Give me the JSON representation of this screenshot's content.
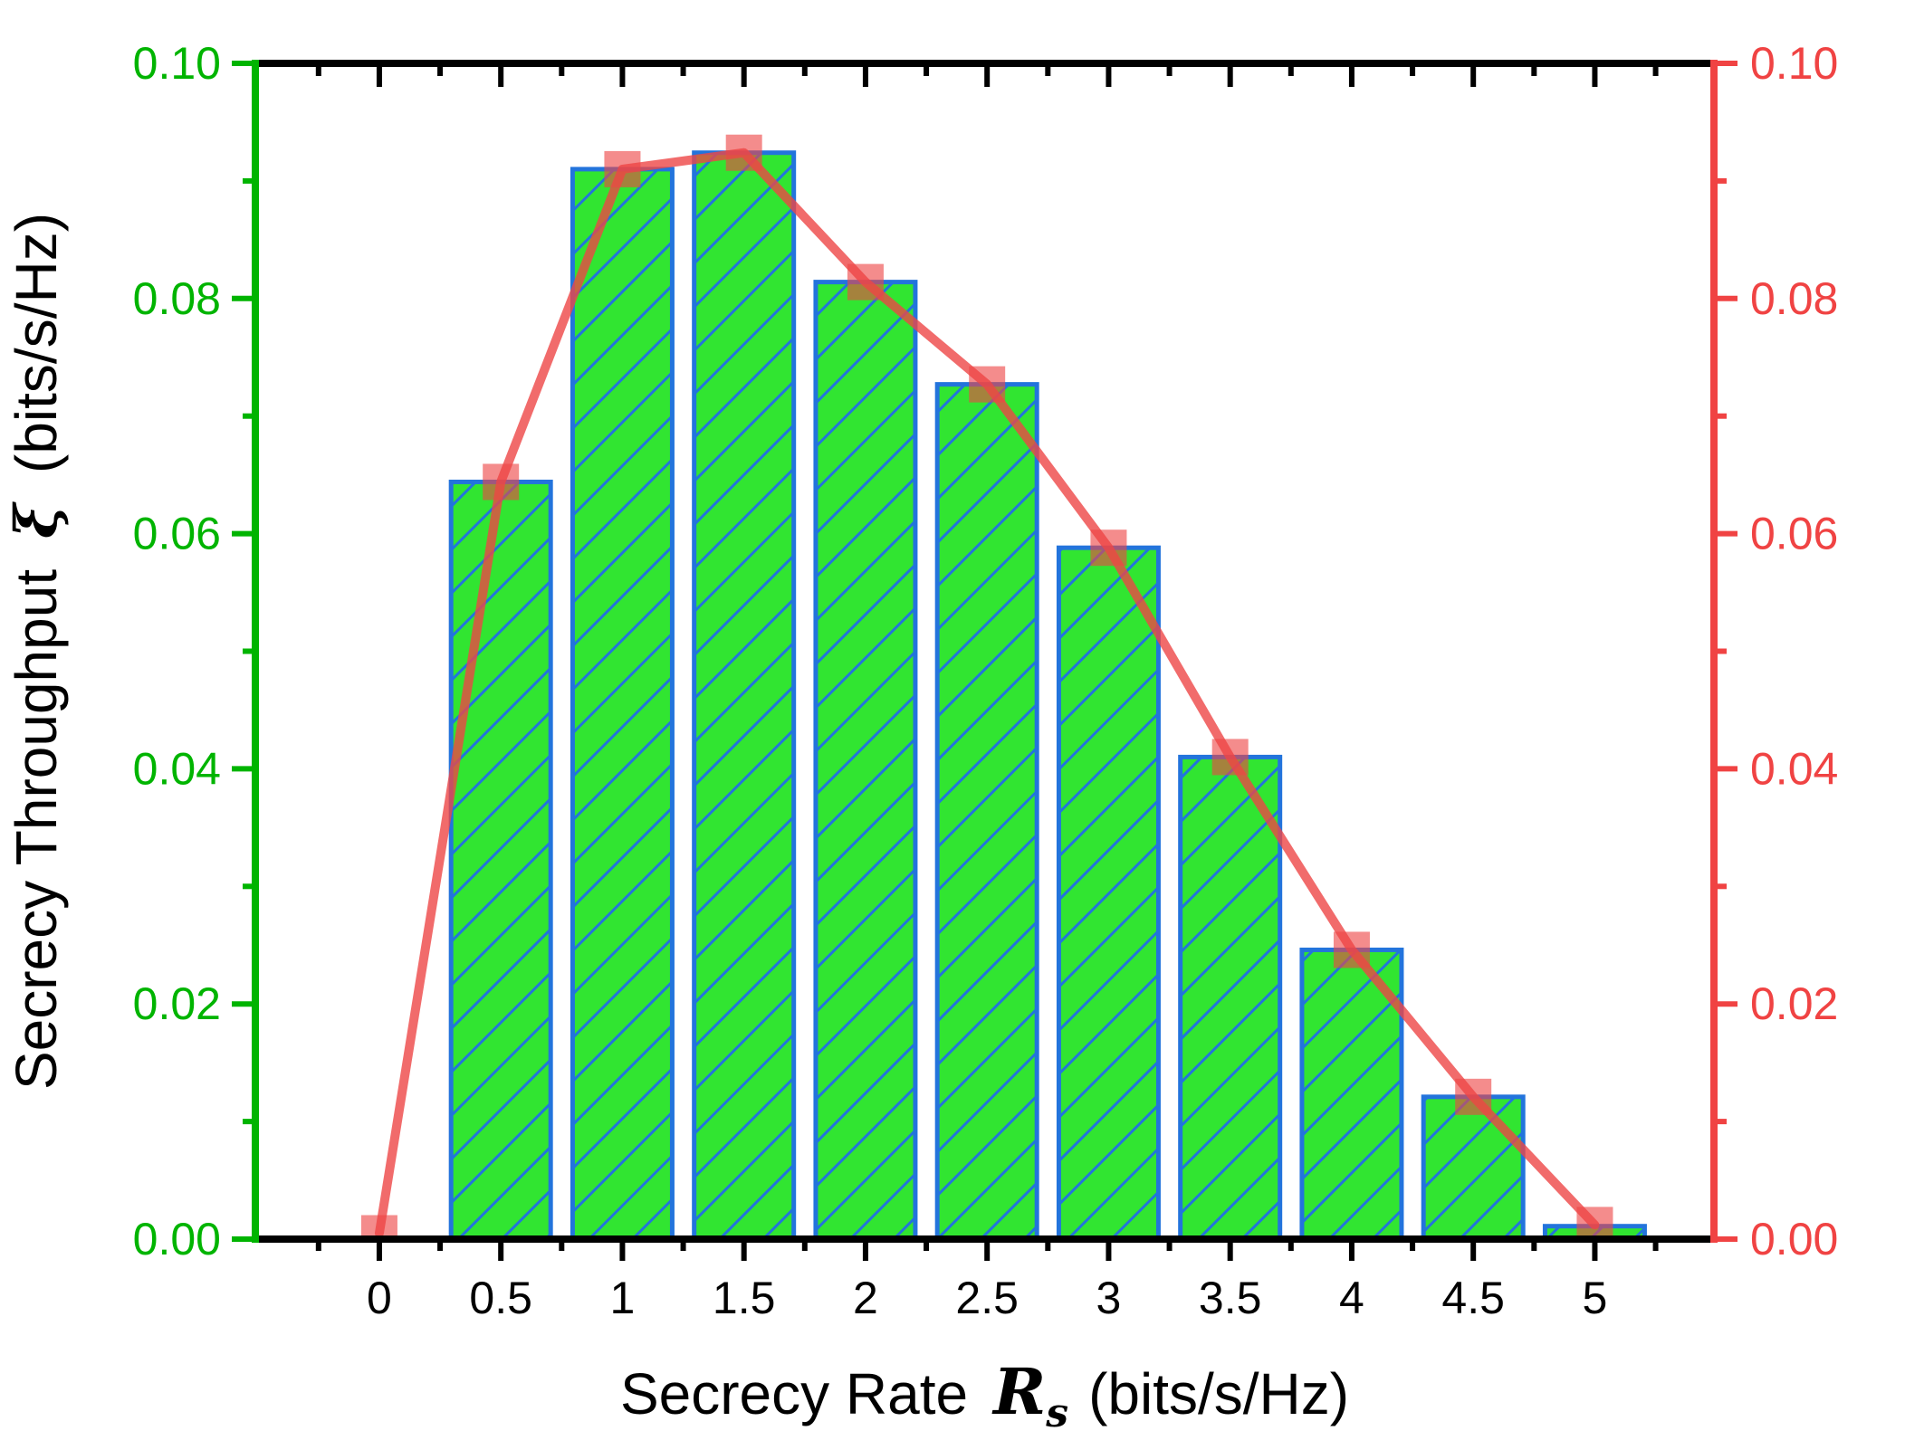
{
  "chart_data": {
    "type": "bar+line",
    "x": [
      0,
      0.5,
      1,
      1.5,
      2,
      2.5,
      3,
      3.5,
      4,
      4.5,
      5
    ],
    "series": [
      {
        "name": "secrecy-throughput-bars",
        "type": "bar",
        "axis": "left",
        "values": [
          null,
          0.0644,
          0.091,
          0.0924,
          0.0814,
          0.0727,
          0.0588,
          0.041,
          0.0246,
          0.0121,
          0.0011
        ]
      },
      {
        "name": "secrecy-throughput-line",
        "type": "line",
        "axis": "right",
        "values": [
          0.0005,
          0.0644,
          0.091,
          0.0924,
          0.0814,
          0.0727,
          0.0588,
          0.041,
          0.0246,
          0.0121,
          0.0012
        ]
      }
    ],
    "xlabel": {
      "text": "Secrecy Rate",
      "symbol": "R",
      "symbol_sub": "s",
      "units": "(bits/s/Hz)"
    },
    "ylabel": {
      "text": "Secrecy Throughput",
      "symbol": "ξ",
      "units": "(bits/s/Hz)"
    },
    "x_tick_labels": [
      "0",
      "0.5",
      "1",
      "1.5",
      "2",
      "2.5",
      "3",
      "3.5",
      "4",
      "4.5",
      "5"
    ],
    "y_tick_labels_left": [
      "0.00",
      "0.02",
      "0.04",
      "0.06",
      "0.08",
      "0.10"
    ],
    "y_tick_labels_right": [
      "0.00",
      "0.02",
      "0.04",
      "0.06",
      "0.08",
      "0.10"
    ],
    "y_major_step": 0.02,
    "y_minor_step": 0.01,
    "x_major_step": 0.5,
    "x_minor_step": 0.25,
    "xlim": [
      -0.51,
      5.49
    ],
    "ylim": [
      0.0,
      0.1
    ],
    "grid": false,
    "legend": "none"
  },
  "style": {
    "bar_fill": "#31e531",
    "bar_edge": "#2374dc",
    "hatch_color": "#2374dc",
    "line_color": "#ee4646",
    "line_opacity": 0.8,
    "marker_color": "#ee4646",
    "marker_opacity": 0.62,
    "left_axis_color": "#00b400",
    "right_axis_color": "#f04343",
    "xy_axis_color": "#000000",
    "text_color": "#000000",
    "background": "#ffffff"
  }
}
